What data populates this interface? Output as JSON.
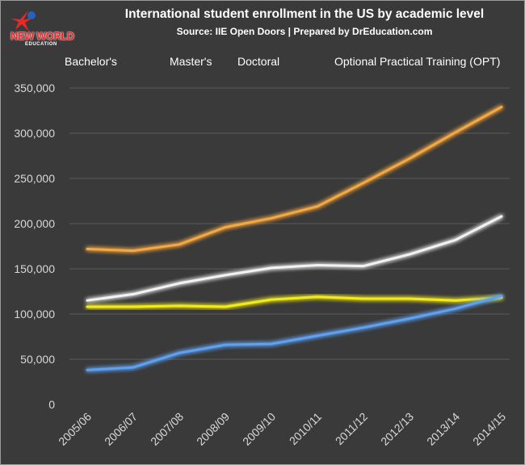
{
  "logo": {
    "line1": "NEW WORLD",
    "line2": "EDUCATION"
  },
  "colors": {
    "background": "#3a3a3a",
    "gridline": "#5a5a5a",
    "axis_text": "#d9d9d9",
    "bachelors": "#f5a742",
    "masters": "#f2f2f2",
    "doctoral": "#f2ea1a",
    "opt": "#5ea0f0"
  },
  "chart_data": {
    "type": "line",
    "title": "International student enrollment in the US by academic level",
    "subtitle": "Source: IIE Open Doors | Prepared by DrEducation.com",
    "xlabel": "",
    "ylabel": "",
    "categories": [
      "2005/06",
      "2006/07",
      "2007/08",
      "2008/09",
      "2009/10",
      "2010/11",
      "2011/12",
      "2012/13",
      "2013/14",
      "2014/15"
    ],
    "ylim": [
      0,
      350000
    ],
    "yticks": [
      0,
      50000,
      100000,
      150000,
      200000,
      250000,
      300000,
      350000
    ],
    "ytick_labels": [
      "0",
      "50,000",
      "100,000",
      "150,000",
      "200,000",
      "250,000",
      "300,000",
      "350,000"
    ],
    "grid": true,
    "legend_position": "top",
    "series": [
      {
        "name": "Bachelor's",
        "color_key": "bachelors",
        "values": [
          172000,
          170000,
          177000,
          196000,
          206000,
          219000,
          245000,
          272000,
          301000,
          329000
        ]
      },
      {
        "name": "Master's",
        "color_key": "masters",
        "values": [
          115000,
          122000,
          134000,
          143000,
          151000,
          154000,
          153000,
          166000,
          182000,
          208000
        ]
      },
      {
        "name": "Doctoral",
        "color_key": "doctoral",
        "values": [
          108000,
          108000,
          109000,
          108000,
          116000,
          119000,
          117000,
          117000,
          115000,
          118000
        ]
      },
      {
        "name": "Optional Practical Training (OPT)",
        "color_key": "opt",
        "values": [
          38000,
          41000,
          57000,
          66000,
          67000,
          76000,
          85000,
          95000,
          106000,
          120000
        ]
      }
    ]
  }
}
